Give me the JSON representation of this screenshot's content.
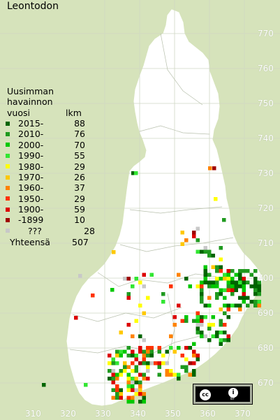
{
  "title": "Leontodon",
  "legend": {
    "heading": [
      "Uusimman",
      "havainnon"
    ],
    "col_year": "vuosi",
    "col_count": "lkm",
    "rows": [
      {
        "label": "2015-",
        "count": "88",
        "color": "#006400"
      },
      {
        "label": "2010-",
        "count": "76",
        "color": "#1f9a1f"
      },
      {
        "label": "2000-",
        "count": "70",
        "color": "#00c800"
      },
      {
        "label": "1990-",
        "count": "55",
        "color": "#32e632"
      },
      {
        "label": "1980-",
        "count": "29",
        "color": "#ffff00"
      },
      {
        "label": "1970-",
        "count": "26",
        "color": "#ffc800"
      },
      {
        "label": "1960-",
        "count": "37",
        "color": "#ff8200"
      },
      {
        "label": "1950-",
        "count": "29",
        "color": "#ff3200"
      },
      {
        "label": "1900-",
        "count": "59",
        "color": "#dc0000"
      },
      {
        "label": "-1899",
        "count": "10",
        "color": "#a00000"
      },
      {
        "label": "???",
        "count": "28",
        "color": "#c8c8c8"
      }
    ],
    "total_label": "Yhteensä",
    "total_count": "507"
  },
  "axis": {
    "y_ticks": [
      "770",
      "760",
      "750",
      "740",
      "730",
      "720",
      "710",
      "700",
      "690",
      "680",
      "670"
    ],
    "x_ticks": [
      "310",
      "320",
      "330",
      "340",
      "350",
      "360",
      "370"
    ]
  },
  "license": {
    "cc": "cc",
    "by_icon": "i",
    "by": "BY"
  },
  "colors": {
    "background": "#d6e3bb",
    "land": "#ffffff"
  }
}
